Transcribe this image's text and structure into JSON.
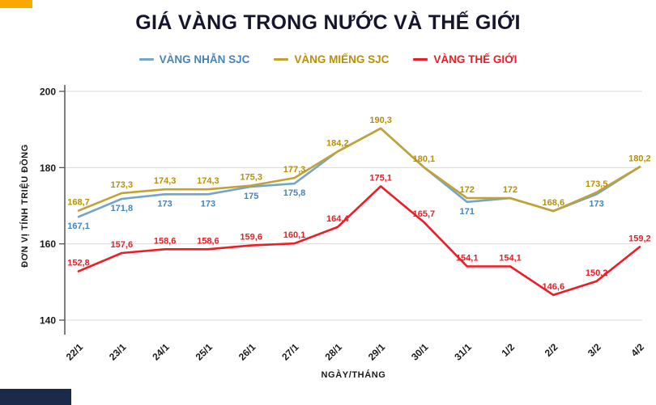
{
  "accents": {
    "top_left_color": "#f9a800",
    "bottom_left_color": "#1b2a4a"
  },
  "chart_data": {
    "type": "line",
    "title": "GIÁ VÀNG TRONG NƯỚC VÀ THẾ GIỚI",
    "xlabel": "NGÀY/THÁNG",
    "ylabel": "ĐƠN VỊ TÍNH TRIỆU ĐỒNG",
    "legend_position": "top",
    "grid": "horizontal",
    "ylim": [
      135,
      200
    ],
    "yticks": [
      140,
      160,
      180,
      200
    ],
    "categories": [
      "22/1",
      "23/1",
      "24/1",
      "25/1",
      "26/1",
      "27/1",
      "28/1",
      "29/1",
      "30/1",
      "31/1",
      "1/2",
      "2/2",
      "3/2",
      "4/2"
    ],
    "series": [
      {
        "name": "VÀNG NHẪN SJC",
        "color": "#74a4cc",
        "label_color": "#4584bb",
        "label_position": "below",
        "values": [
          167.1,
          171.8,
          173,
          173,
          175,
          175.8,
          184.2,
          190.3,
          180.1,
          171,
          172,
          168.6,
          173,
          180.2
        ],
        "labels": [
          "167,1",
          "171,8",
          "173",
          "173",
          "175",
          "175,8",
          "",
          "",
          "",
          "171",
          "",
          "",
          "173",
          ""
        ]
      },
      {
        "name": "VÀNG MIẾNG SJC",
        "color": "#c2a233",
        "label_color": "#bb8f00",
        "label_position": "above",
        "values": [
          168.7,
          173.3,
          174.3,
          174.3,
          175.3,
          177.3,
          184.2,
          190.3,
          180.1,
          172,
          172,
          168.6,
          173.5,
          180.2
        ],
        "labels": [
          "168,7",
          "173,3",
          "174,3",
          "174,3",
          "175,3",
          "177,3",
          "184,2",
          "190,3",
          "180,1",
          "172",
          "172",
          "168,6",
          "173,5",
          "180,2"
        ]
      },
      {
        "name": "VÀNG THẾ GIỚI",
        "color": "#ee1c24",
        "label_color": "#ee1c24",
        "label_position": "above",
        "values": [
          152.8,
          157.6,
          158.6,
          158.6,
          159.6,
          160.1,
          164.4,
          175.1,
          165.7,
          154.1,
          154.1,
          146.6,
          150.2,
          159.2
        ],
        "labels": [
          "152,8",
          "157,6",
          "158,6",
          "158,6",
          "159,6",
          "160,1",
          "164,4",
          "175,1",
          "165,7",
          "154,1",
          "154,1",
          "146,6",
          "150,2",
          "159,2"
        ]
      }
    ]
  }
}
